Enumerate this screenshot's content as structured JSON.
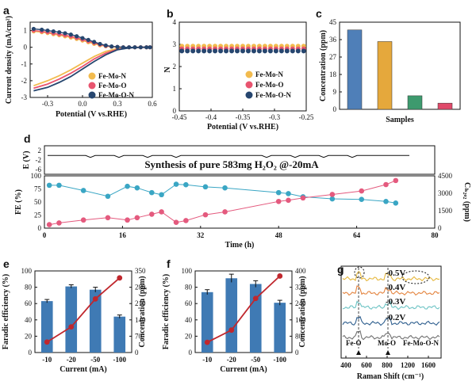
{
  "chart_data": [
    {
      "panel": "a",
      "type": "line",
      "xlabel": "Potential (V vs.RHE)",
      "ylabel": "Current density (mA/cm²)",
      "xlim": [
        -0.45,
        0.6
      ],
      "ylim": [
        -3,
        1.5
      ],
      "xticks": [
        "-0.3",
        "0.0",
        "0.3",
        "0.6"
      ],
      "yticks": [
        "1",
        "0",
        "-1",
        "-2",
        "-3"
      ],
      "legend_position": "bottom-right",
      "series": [
        {
          "name": "Fe-Mo-N",
          "color": "#f2bb4e",
          "ring_x": [
            -0.42,
            -0.35,
            -0.3,
            -0.25,
            -0.2,
            -0.15,
            -0.1,
            -0.05,
            0.0,
            0.05,
            0.1,
            0.15,
            0.2,
            0.25,
            0.3,
            0.35,
            0.4,
            0.45,
            0.5,
            0.55,
            0.58
          ],
          "ring_y": [
            0.95,
            0.9,
            0.85,
            0.78,
            0.72,
            0.65,
            0.58,
            0.5,
            0.4,
            0.3,
            0.2,
            0.12,
            0.06,
            0.03,
            0.01,
            0.0,
            0.0,
            0.0,
            0.0,
            0.0,
            0.0
          ],
          "disk_x": [
            -0.42,
            -0.3,
            -0.2,
            -0.1,
            0.0,
            0.1,
            0.2,
            0.3,
            0.4,
            0.5,
            0.58
          ],
          "disk_y": [
            -2.3,
            -2.0,
            -1.7,
            -1.35,
            -0.95,
            -0.55,
            -0.25,
            -0.08,
            -0.02,
            0.0,
            0.0
          ]
        },
        {
          "name": "Fe-Mo-O",
          "color": "#e8546f",
          "ring_x": [
            -0.42,
            -0.35,
            -0.3,
            -0.25,
            -0.2,
            -0.15,
            -0.1,
            -0.05,
            0.0,
            0.05,
            0.1,
            0.15,
            0.2,
            0.25,
            0.3,
            0.35,
            0.4,
            0.45,
            0.5,
            0.55,
            0.58
          ],
          "ring_y": [
            1.0,
            0.95,
            0.9,
            0.84,
            0.78,
            0.72,
            0.65,
            0.56,
            0.46,
            0.36,
            0.26,
            0.16,
            0.08,
            0.04,
            0.02,
            0.0,
            0.0,
            0.0,
            0.0,
            0.0,
            0.0
          ],
          "disk_x": [
            -0.42,
            -0.3,
            -0.2,
            -0.1,
            0.0,
            0.1,
            0.2,
            0.3,
            0.4,
            0.5,
            0.58
          ],
          "disk_y": [
            -2.45,
            -2.2,
            -1.9,
            -1.55,
            -1.15,
            -0.7,
            -0.35,
            -0.12,
            -0.03,
            0.0,
            0.0
          ]
        },
        {
          "name": "Fe-Mo-O-N",
          "color": "#26466f",
          "ring_x": [
            -0.42,
            -0.35,
            -0.3,
            -0.25,
            -0.2,
            -0.15,
            -0.1,
            -0.05,
            0.0,
            0.05,
            0.1,
            0.15,
            0.2,
            0.25,
            0.3,
            0.35,
            0.4,
            0.45,
            0.5,
            0.55,
            0.58
          ],
          "ring_y": [
            1.1,
            1.05,
            1.0,
            0.95,
            0.9,
            0.84,
            0.76,
            0.66,
            0.55,
            0.44,
            0.32,
            0.2,
            0.11,
            0.05,
            0.02,
            0.0,
            0.0,
            0.0,
            0.0,
            0.0,
            0.0
          ],
          "disk_x": [
            -0.42,
            -0.3,
            -0.2,
            -0.1,
            0.0,
            0.1,
            0.2,
            0.3,
            0.4,
            0.5,
            0.58
          ],
          "disk_y": [
            -2.6,
            -2.4,
            -2.1,
            -1.75,
            -1.3,
            -0.85,
            -0.45,
            -0.15,
            -0.04,
            0.0,
            0.0
          ]
        }
      ]
    },
    {
      "panel": "b",
      "type": "scatter",
      "xlabel": "Potential (V vs.RHE)",
      "ylabel": "N",
      "xlim": [
        -0.45,
        -0.25
      ],
      "ylim": [
        0,
        4
      ],
      "xticks": [
        "-0.45",
        "-0.4",
        "-0.35",
        "-0.3",
        "-0.25"
      ],
      "yticks": [
        "0",
        "1",
        "2",
        "3",
        "4"
      ],
      "legend_position": "bottom-right",
      "series": [
        {
          "name": "Fe-Mo-N",
          "color": "#f2bb4e",
          "y": 2.92
        },
        {
          "name": "Fe-Mo-O",
          "color": "#e8546f",
          "y": 2.8
        },
        {
          "name": "Fe-Mo-O-N",
          "color": "#26466f",
          "y": 2.7
        }
      ]
    },
    {
      "panel": "c",
      "type": "bar",
      "xlabel": "Samples",
      "ylabel": "Concentration (ppm)",
      "ylim": [
        0,
        45
      ],
      "yticks": [
        "0",
        "9",
        "18",
        "27",
        "36",
        "45"
      ],
      "values": [
        41,
        35,
        7,
        3.2
      ],
      "colors": [
        "#4f7fb8",
        "#e5a83c",
        "#3d9a6e",
        "#e04a6a"
      ]
    },
    {
      "panel": "d",
      "type": "line",
      "annotation": "Synthesis of pure 583mg H₂O₂ @-20mA",
      "top_ylabel": "E (V)",
      "top_yticks": [
        "2",
        "-2",
        "-6"
      ],
      "xlabel": "Time (h)",
      "xlim": [
        0,
        80
      ],
      "xticks": [
        "0",
        "16",
        "32",
        "48",
        "64",
        "80"
      ],
      "y_left_label": "FE (%)",
      "y_left_lim": [
        0,
        100
      ],
      "y_left_ticks": [
        "0",
        "25",
        "50",
        "75",
        "100"
      ],
      "y_right_label": "Cₕ₂ₒ₂ (ppm)",
      "y_right_lim": [
        0,
        4500
      ],
      "y_right_ticks": [
        "0",
        "1500",
        "3000",
        "4500"
      ],
      "fe_color": "#3aa6c4",
      "conc_color": "#e45a7e",
      "fe": {
        "x": [
          1,
          3,
          8,
          13,
          17,
          19,
          22,
          24,
          27,
          29,
          33,
          37,
          48,
          50,
          53,
          59,
          65,
          70,
          72
        ],
        "y": [
          82,
          82,
          72,
          61,
          80,
          77,
          68,
          64,
          84,
          83,
          79,
          77,
          68,
          66,
          60,
          56,
          55,
          51,
          48
        ]
      },
      "conc": {
        "x": [
          1,
          3,
          8,
          13,
          17,
          19,
          22,
          24,
          27,
          29,
          33,
          37,
          48,
          50,
          53,
          59,
          65,
          70,
          72
        ],
        "y": [
          300,
          450,
          700,
          900,
          700,
          900,
          1200,
          1400,
          500,
          650,
          1150,
          1400,
          2300,
          2400,
          2600,
          2900,
          3200,
          3750,
          4100
        ]
      }
    },
    {
      "panel": "e",
      "type": "bar",
      "xlabel": "Current (mA)",
      "categories": [
        "-10",
        "-20",
        "-50",
        "-100"
      ],
      "y_left_label": "Faradic efficiency (%)",
      "y_left_lim": [
        0,
        100
      ],
      "y_left_ticks": [
        "0",
        "20",
        "40",
        "60",
        "80",
        "100"
      ],
      "y_right_label": "Concentration (ppm)",
      "y_right_lim": [
        0,
        350
      ],
      "y_right_ticks": [
        "0",
        "70",
        "140",
        "210",
        "280",
        "350"
      ],
      "values": [
        63,
        81,
        77,
        44
      ],
      "errors": [
        2,
        2,
        3,
        2
      ],
      "line_values": [
        45,
        110,
        230,
        320
      ],
      "bar_color": "#3f7ab4",
      "line_color": "#c0272d"
    },
    {
      "panel": "f",
      "type": "bar",
      "xlabel": "Current (mA)",
      "categories": [
        "-10",
        "-20",
        "-50",
        "-100"
      ],
      "y_left_label": "Faradic efficiency (%)",
      "y_left_lim": [
        0,
        100
      ],
      "y_left_ticks": [
        "0",
        "20",
        "40",
        "60",
        "80",
        "100"
      ],
      "y_right_label": "Concentration (ppm)",
      "y_right_lim": [
        0,
        400
      ],
      "y_right_ticks": [
        "0",
        "80",
        "160",
        "240",
        "320",
        "400"
      ],
      "values": [
        74,
        91,
        84,
        61
      ],
      "errors": [
        3,
        5,
        4,
        3
      ],
      "line_values": [
        50,
        110,
        265,
        375
      ],
      "bar_color": "#3f7ab4",
      "line_color": "#c0272d"
    },
    {
      "panel": "g",
      "type": "line",
      "xlabel": "Raman Shift (cm⁻¹)",
      "xticks": [
        "400",
        "600",
        "800",
        "1200",
        "1600"
      ],
      "traces": [
        {
          "label": "-0.5V",
          "color": "#e6b83d"
        },
        {
          "label": "-0.4V",
          "color": "#e4843f"
        },
        {
          "label": "-0.3V",
          "color": "#6cc3c4"
        },
        {
          "label": "-0.2V",
          "color": "#2f5f8f"
        },
        {
          "label": "",
          "color": "#707070"
        }
      ],
      "peak_labels": [
        "Fe-O",
        "Mo-O",
        "Fe-Mo-O-N"
      ]
    }
  ]
}
